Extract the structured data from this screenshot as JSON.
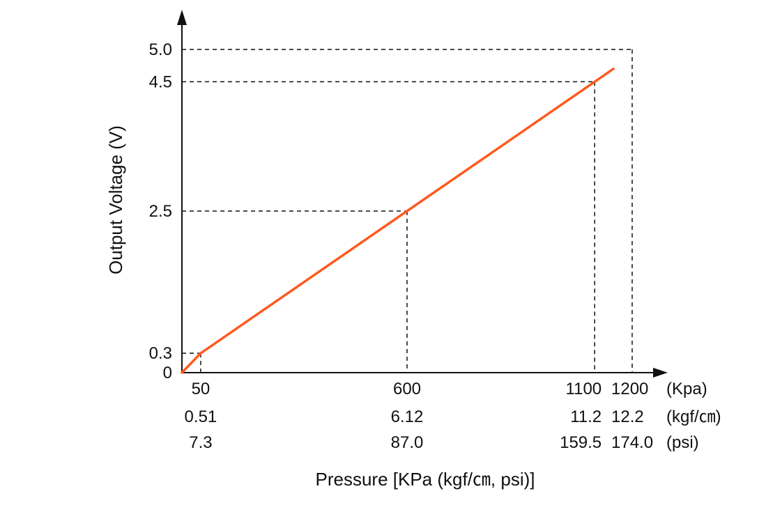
{
  "chart_data": {
    "type": "line",
    "title": "",
    "xlabel": "Pressure [KPa (kgf/㎝, psi)]",
    "ylabel": "Output Voltage (V)",
    "xlim": [
      0,
      1200
    ],
    "ylim": [
      0,
      5.0
    ],
    "grid": false,
    "series": [
      {
        "x": [
          0,
          50,
          600,
          1100,
          1150
        ],
        "y": [
          0,
          0.3,
          2.5,
          4.5,
          4.7
        ]
      }
    ],
    "y_ticks": [
      {
        "value": 0,
        "label": "0"
      },
      {
        "value": 0.3,
        "label": "0.3"
      },
      {
        "value": 2.5,
        "label": "2.5"
      },
      {
        "value": 4.5,
        "label": "4.5"
      },
      {
        "value": 5.0,
        "label": "5.0"
      }
    ],
    "x_ticks": [
      {
        "value": 50,
        "kpa": "50",
        "kgf": "0.51",
        "psi": "7.3"
      },
      {
        "value": 600,
        "kpa": "600",
        "kgf": "6.12",
        "psi": "87.0"
      },
      {
        "value": 1100,
        "kpa": "1100",
        "kgf": "11.2",
        "psi": "159.5"
      },
      {
        "value": 1200,
        "kpa": "1200",
        "kgf": "12.2",
        "psi": "174.0"
      }
    ],
    "unit_labels": {
      "kpa": "(Kpa)",
      "kgf": "(kgf/㎝)",
      "psi": "(psi)"
    },
    "reference_points": [
      {
        "x": 50,
        "y": 0.3
      },
      {
        "x": 600,
        "y": 2.5
      },
      {
        "x": 1100,
        "y": 4.5
      },
      {
        "x": 1200,
        "y": 5.0
      }
    ],
    "colors": {
      "line": "#ff5a1f",
      "axis": "#111111",
      "guide": "#111111"
    }
  }
}
